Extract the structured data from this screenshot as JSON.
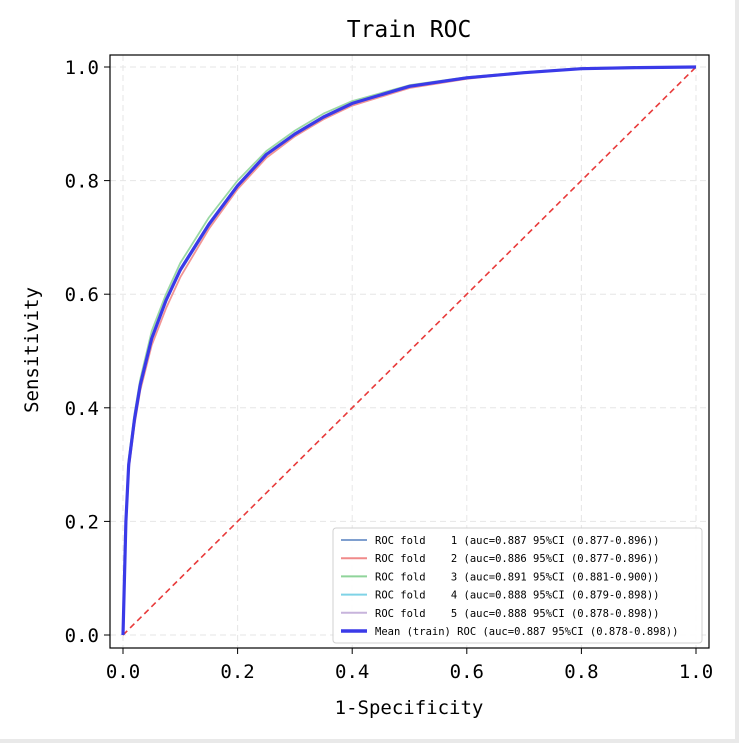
{
  "chart_data": {
    "type": "line",
    "title": "Train ROC",
    "xlabel": "1-Specificity",
    "ylabel": "Sensitivity",
    "xlim": [
      0.0,
      1.0
    ],
    "ylim": [
      0.0,
      1.0
    ],
    "xticks": [
      "0.0",
      "0.2",
      "0.4",
      "0.6",
      "0.8",
      "1.0"
    ],
    "yticks": [
      "0.0",
      "0.2",
      "0.4",
      "0.6",
      "0.8",
      "1.0"
    ],
    "grid": true,
    "legend_position": "lower-right",
    "x": [
      0,
      0.005,
      0.01,
      0.02,
      0.03,
      0.05,
      0.075,
      0.1,
      0.15,
      0.2,
      0.25,
      0.3,
      0.35,
      0.4,
      0.5,
      0.6,
      0.7,
      0.8,
      0.9,
      1.0
    ],
    "series": [
      {
        "name": "ROC fold    1 (auc=0.887 95%CI (0.877-0.896))",
        "color": "#7f9fcf",
        "values": [
          0,
          0.2,
          0.3,
          0.38,
          0.44,
          0.52,
          0.59,
          0.64,
          0.72,
          0.79,
          0.845,
          0.88,
          0.91,
          0.935,
          0.965,
          0.98,
          0.99,
          0.997,
          0.999,
          1.0
        ]
      },
      {
        "name": "ROC fold    2 (auc=0.886 95%CI (0.877-0.896))",
        "color": "#f08a8a",
        "values": [
          0,
          0.19,
          0.29,
          0.37,
          0.43,
          0.51,
          0.575,
          0.63,
          0.715,
          0.785,
          0.84,
          0.878,
          0.908,
          0.932,
          0.963,
          0.979,
          0.99,
          0.997,
          0.999,
          1.0
        ]
      },
      {
        "name": "ROC fold    3 (auc=0.891 95%CI (0.881-0.900))",
        "color": "#8fd49a",
        "values": [
          0,
          0.21,
          0.31,
          0.39,
          0.45,
          0.535,
          0.6,
          0.655,
          0.735,
          0.8,
          0.852,
          0.888,
          0.918,
          0.94,
          0.968,
          0.982,
          0.991,
          0.998,
          1.0,
          1.0
        ]
      },
      {
        "name": "ROC fold    4 (auc=0.888 95%CI (0.879-0.898))",
        "color": "#7fd3e6",
        "values": [
          0,
          0.2,
          0.305,
          0.385,
          0.445,
          0.525,
          0.59,
          0.645,
          0.725,
          0.792,
          0.847,
          0.882,
          0.912,
          0.936,
          0.966,
          0.981,
          0.99,
          0.997,
          0.999,
          1.0
        ]
      },
      {
        "name": "ROC fold    5 (auc=0.888 95%CI (0.878-0.898))",
        "color": "#c7b4dc",
        "values": [
          0,
          0.2,
          0.3,
          0.38,
          0.44,
          0.52,
          0.588,
          0.642,
          0.722,
          0.79,
          0.846,
          0.882,
          0.912,
          0.936,
          0.966,
          0.981,
          0.99,
          0.997,
          0.999,
          1.0
        ]
      },
      {
        "name": "Mean (train) ROC (auc=0.887 95%CI (0.878-0.898))",
        "color": "#3a3ae8",
        "values": [
          0,
          0.2,
          0.3,
          0.38,
          0.44,
          0.522,
          0.589,
          0.643,
          0.723,
          0.791,
          0.846,
          0.882,
          0.912,
          0.936,
          0.966,
          0.981,
          0.99,
          0.997,
          0.999,
          1.0
        ]
      }
    ],
    "diagonal": {
      "x": [
        0,
        1
      ],
      "y": [
        0,
        1
      ],
      "color": "#e83a3a",
      "style": "dashed"
    }
  }
}
